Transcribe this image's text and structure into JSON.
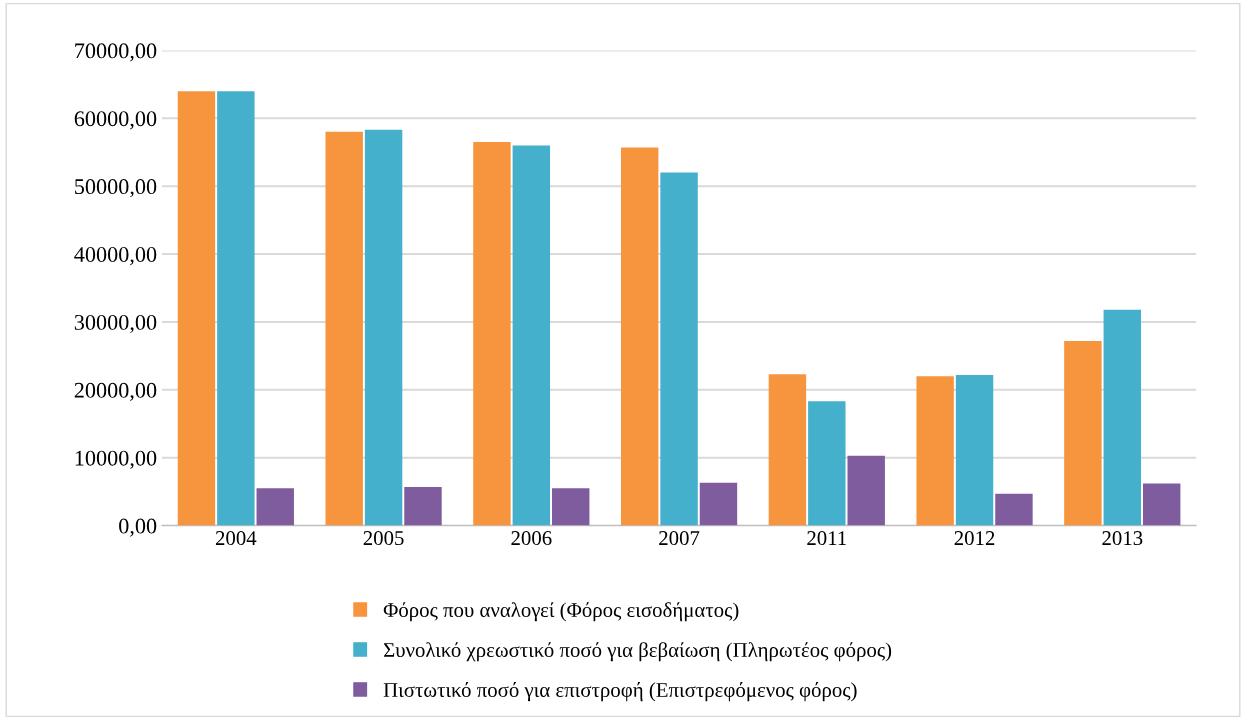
{
  "chart_data": {
    "type": "bar",
    "categories": [
      "2004",
      "2005",
      "2006",
      "2007",
      "2011",
      "2012",
      "2013"
    ],
    "series": [
      {
        "name": "Φόρος που αναλογεί (Φόρος εισοδήματος)",
        "color": "#f7953f",
        "values": [
          64000,
          58000,
          56500,
          55700,
          22300,
          22000,
          27200
        ]
      },
      {
        "name": "Συνολικό χρεωστικό ποσό για βεβαίωση (Πληρωτέος φόρος)",
        "color": "#44b0cc",
        "values": [
          64000,
          58300,
          56000,
          52000,
          18300,
          22200,
          31800
        ]
      },
      {
        "name": "Πιστωτικό ποσό για επιστροφή (Επιστρεφόμενος φόρος)",
        "color": "#7f5c9e",
        "values": [
          5500,
          5700,
          5500,
          6300,
          10300,
          4700,
          6200
        ]
      }
    ],
    "ylim": [
      0,
      70000
    ],
    "yticks": [
      {
        "value": 0,
        "label": "0,00"
      },
      {
        "value": 10000,
        "label": "10000,00"
      },
      {
        "value": 20000,
        "label": "20000,00"
      },
      {
        "value": 30000,
        "label": "30000,00"
      },
      {
        "value": 40000,
        "label": "40000,00"
      },
      {
        "value": 50000,
        "label": "50000,00"
      },
      {
        "value": 60000,
        "label": "60000,00"
      },
      {
        "value": 70000,
        "label": "70000,00"
      }
    ],
    "grid": "y",
    "legend": "bottom"
  }
}
